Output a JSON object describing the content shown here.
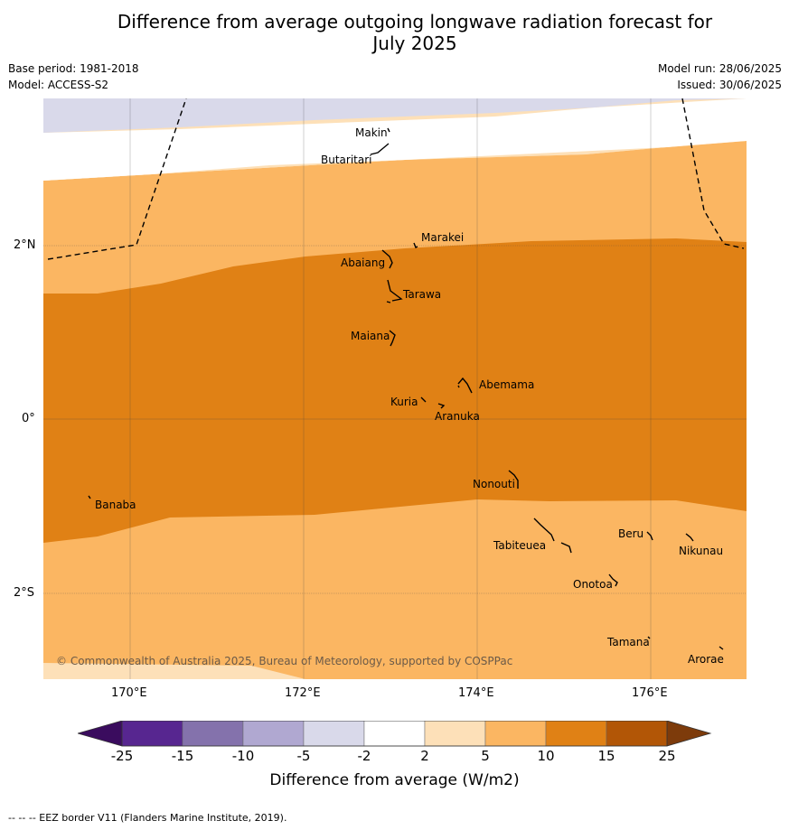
{
  "title_line1": "Difference from average outgoing longwave radiation forecast for",
  "title_line2": "July 2025",
  "base_period": "Base period: 1981-2018",
  "model": "Model: ACCESS-S2",
  "model_run": "Model run: 28/06/2025",
  "issued": "Issued: 30/06/2025",
  "copyright": "© Commonwealth of Australia 2025, Bureau of Meteorology, supported by COSPPac",
  "footer": "-- -- -- EEZ border V11 (Flanders Marine Institute, 2019).",
  "map_data": {
    "longitude_range": [
      169,
      177.1
    ],
    "latitude_range": [
      -3,
      3.7
    ],
    "x_ticks": [
      "170°E",
      "172°E",
      "174°E",
      "176°E"
    ],
    "y_ticks": [
      "2°N",
      "0°",
      "2°S"
    ],
    "islands": [
      "Makin",
      "Butaritari",
      "Marakei",
      "Abaiang",
      "Tarawa",
      "Maiana",
      "Abemama",
      "Kuria",
      "Aranuka",
      "Nonouti",
      "Banaba",
      "Beru",
      "Tabiteuea",
      "Nikunau",
      "Onotoa",
      "Tamana",
      "Arorae"
    ]
  },
  "colorbar": {
    "title": "Difference from average (W/m2)",
    "labels": [
      "-25",
      "-15",
      "-10",
      "-5",
      "-2",
      "2",
      "5",
      "10",
      "15",
      "25"
    ],
    "colors": [
      "#572690",
      "#8472ac",
      "#b0a8d1",
      "#d9d9ea",
      "#ffffff",
      "#fde0b8",
      "#fbb662",
      "#e08115",
      "#b25606"
    ],
    "extend_low_color": "#3a0c5e",
    "extend_high_color": "#7d3b0b"
  }
}
